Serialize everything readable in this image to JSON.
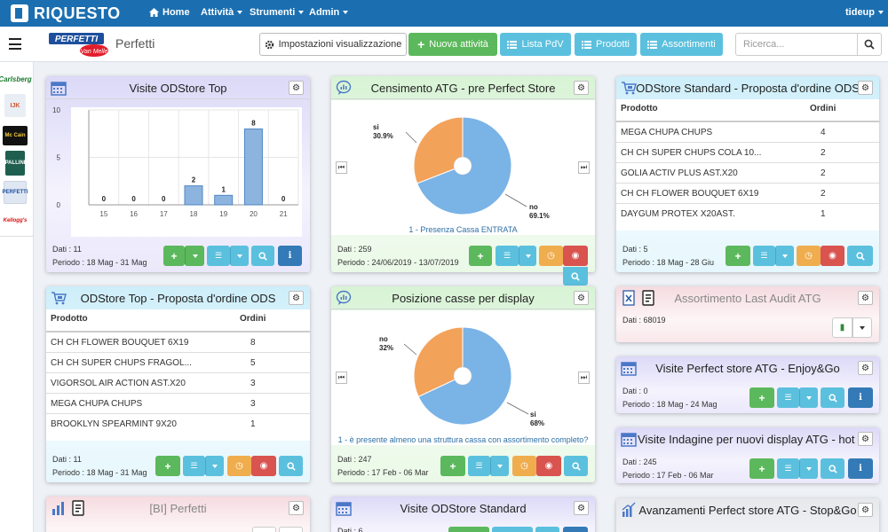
{
  "nav": {
    "brand": "RIQUESTO",
    "home": "Home",
    "attivita": "Attività",
    "strumenti": "Strumenti",
    "admin": "Admin",
    "user": "tideup"
  },
  "toolbar": {
    "logo_text": "PERFETTI",
    "logo_sub": "Van Melle",
    "title": "Perfetti",
    "impostazioni": "Impostazioni visualizzazione",
    "nuova": "Nuova attività",
    "lista": "Lista PdV",
    "prodotti": "Prodotti",
    "assortimenti": "Assortimenti"
  },
  "search": {
    "placeholder": "Ricerca..."
  },
  "sidebar": {
    "items": [
      "Carlsberg",
      "IJK",
      "Mc Cain",
      "PALLINI",
      "PERFETTI",
      "Kellogg's"
    ]
  },
  "colors": {
    "nav": "#1b6fb1",
    "bar": "#8db4de",
    "pie_blue": "#7ab3e6",
    "pie_orange": "#f3a25a",
    "green": "#5cb85c",
    "teal": "#5bc0de",
    "orange": "#f0ad4e",
    "red": "#d9534f",
    "blue": "#337ab7"
  },
  "cards": {
    "visite_top": {
      "title": "Visite ODStore Top",
      "dati": "Dati : 11",
      "periodo": "Periodo : 18 Mag - 31 Mag",
      "chart_data": {
        "type": "bar",
        "categories": [
          "15",
          "16",
          "17",
          "18",
          "19",
          "20",
          "21"
        ],
        "values": [
          0,
          0,
          0,
          2,
          1,
          8,
          0
        ],
        "yticks": [
          "10",
          "5",
          "0"
        ],
        "ylim": [
          0,
          10
        ]
      }
    },
    "censimento": {
      "title": "Censimento ATG - pre Perfect Store",
      "dati": "Dati : 259",
      "periodo": "Periodo : 24/06/2019 - 13/07/2019",
      "caption": "1 - Presenza Cassa ENTRATA",
      "chart_data": {
        "type": "pie",
        "slices": [
          {
            "label": "si",
            "pct_label": "30.9%",
            "value": 30.9
          },
          {
            "label": "no",
            "pct_label": "69.1%",
            "value": 69.1
          }
        ]
      }
    },
    "standard_ordine": {
      "title": "ODStore Standard - Proposta d'ordine ODS",
      "col_prodotto": "Prodotto",
      "col_ordini": "Ordini",
      "rows": [
        {
          "p": "MEGA CHUPA CHUPS",
          "n": "4"
        },
        {
          "p": "CH CH SUPER CHUPS COLA 10...",
          "n": "2"
        },
        {
          "p": "GOLIA ACTIV PLUS AST.X20",
          "n": "2"
        },
        {
          "p": "CH CH FLOWER BOUQUET 6X19",
          "n": "2"
        },
        {
          "p": "DAYGUM PROTEX X20AST.",
          "n": "1"
        }
      ],
      "dati": "Dati : 5",
      "periodo": "Periodo : 18 Mag - 28 Giu"
    },
    "top_ordine": {
      "title": "ODStore Top - Proposta d'ordine ODS",
      "col_prodotto": "Prodotto",
      "col_ordini": "Ordini",
      "rows": [
        {
          "p": "CH CH FLOWER BOUQUET 6X19",
          "n": "8"
        },
        {
          "p": "CH CH SUPER CHUPS FRAGOL...",
          "n": "5"
        },
        {
          "p": "VIGORSOL AIR ACTION AST.X20",
          "n": "3"
        },
        {
          "p": "MEGA CHUPA CHUPS",
          "n": "3"
        },
        {
          "p": "BROOKLYN SPEARMINT 9X20",
          "n": "1"
        }
      ],
      "dati": "Dati : 11",
      "periodo": "Periodo : 18 Mag - 31 Mag"
    },
    "posizione": {
      "title": "Posizione casse per display",
      "dati": "Dati : 247",
      "periodo": "Periodo : 17 Feb - 06 Mar",
      "caption": "1 - è presente almeno una struttura cassa con assortimento completo?",
      "chart_data": {
        "type": "pie",
        "slices": [
          {
            "label": "no",
            "pct_label": "32%",
            "value": 32
          },
          {
            "label": "si",
            "pct_label": "68%",
            "value": 68
          }
        ]
      }
    },
    "assortimento": {
      "title": "Assortimento Last Audit ATG",
      "dati": "Dati : 68019"
    },
    "visite_enjoy": {
      "title": "Visite Perfect store ATG - Enjoy&Go",
      "dati": "Dati : 0",
      "periodo": "Periodo : 18 Mag - 24 Mag"
    },
    "visite_indagine": {
      "title": "Visite Indagine per nuovi display ATG - hot ...",
      "dati": "Dati : 245",
      "periodo": "Periodo : 17 Feb - 06 Mar"
    },
    "bi": {
      "title": "[BI] Perfetti"
    },
    "visite_standard": {
      "title": "Visite ODStore Standard",
      "dati": "Dati : 6"
    },
    "avanzamenti": {
      "title": "Avanzamenti Perfect store ATG - Stop&Go"
    }
  }
}
